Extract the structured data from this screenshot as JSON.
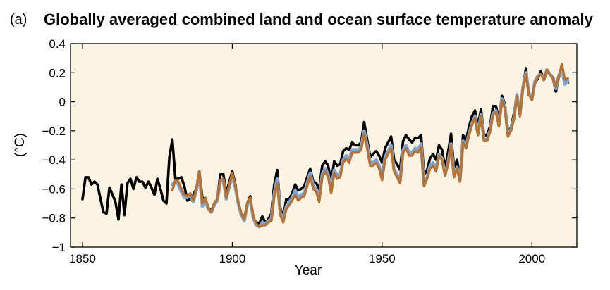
{
  "panel_label": "(a)",
  "chart_data": {
    "type": "line",
    "title": "Globally averaged combined land and ocean surface temperature anomaly",
    "xlabel": "Year",
    "ylabel": "(°C)",
    "xlim": [
      1846,
      2015
    ],
    "ylim": [
      -1,
      0.4
    ],
    "xticks": [
      1850,
      1900,
      1950,
      2000
    ],
    "yticks": [
      0.4,
      0.2,
      0,
      -0.2,
      -0.4,
      -0.6,
      -0.8,
      -1
    ],
    "ytick_labels": [
      "0.4",
      "0.2",
      "0",
      "−0.2",
      "−0.4",
      "−0.6",
      "−0.8",
      "−1"
    ],
    "grid": false,
    "background_color": "#fcf3e2",
    "series": [
      {
        "color": "#000000",
        "x": [
          1850,
          1851,
          1852,
          1853,
          1854,
          1855,
          1856,
          1857,
          1858,
          1859,
          1860,
          1861,
          1862,
          1863,
          1864,
          1865,
          1866,
          1867,
          1868,
          1869,
          1870,
          1871,
          1872,
          1873,
          1874,
          1875,
          1876,
          1877,
          1878,
          1879,
          1880,
          1881,
          1882,
          1883,
          1884,
          1885,
          1886,
          1887,
          1888,
          1889,
          1890,
          1891,
          1892,
          1893,
          1894,
          1895,
          1896,
          1897,
          1898,
          1899,
          1900,
          1901,
          1902,
          1903,
          1904,
          1905,
          1906,
          1907,
          1908,
          1909,
          1910,
          1911,
          1912,
          1913,
          1914,
          1915,
          1916,
          1917,
          1918,
          1919,
          1920,
          1921,
          1922,
          1923,
          1924,
          1925,
          1926,
          1927,
          1928,
          1929,
          1930,
          1931,
          1932,
          1933,
          1934,
          1935,
          1936,
          1937,
          1938,
          1939,
          1940,
          1941,
          1942,
          1943,
          1944,
          1945,
          1946,
          1947,
          1948,
          1949,
          1950,
          1951,
          1952,
          1953,
          1954,
          1955,
          1956,
          1957,
          1958,
          1959,
          1960,
          1961,
          1962,
          1963,
          1964,
          1965,
          1966,
          1967,
          1968,
          1969,
          1970,
          1971,
          1972,
          1973,
          1974,
          1975,
          1976,
          1977,
          1978,
          1979,
          1980,
          1981,
          1982,
          1983,
          1984,
          1985,
          1986,
          1987,
          1988,
          1989,
          1990,
          1991,
          1992,
          1993,
          1994,
          1995,
          1996,
          1997,
          1998,
          1999,
          2000,
          2001,
          2002,
          2003,
          2004,
          2005,
          2006,
          2007,
          2008,
          2009,
          2010,
          2011,
          2012
        ],
        "values": [
          -0.67,
          -0.52,
          -0.52,
          -0.57,
          -0.55,
          -0.57,
          -0.67,
          -0.76,
          -0.77,
          -0.59,
          -0.64,
          -0.69,
          -0.81,
          -0.57,
          -0.78,
          -0.56,
          -0.53,
          -0.6,
          -0.52,
          -0.55,
          -0.55,
          -0.59,
          -0.55,
          -0.59,
          -0.64,
          -0.53,
          -0.6,
          -0.68,
          -0.7,
          -0.38,
          -0.26,
          -0.53,
          -0.53,
          -0.52,
          -0.58,
          -0.68,
          -0.67,
          -0.64,
          -0.6,
          -0.48,
          -0.66,
          -0.67,
          -0.73,
          -0.75,
          -0.7,
          -0.67,
          -0.5,
          -0.5,
          -0.63,
          -0.55,
          -0.48,
          -0.57,
          -0.7,
          -0.77,
          -0.8,
          -0.7,
          -0.65,
          -0.8,
          -0.83,
          -0.84,
          -0.79,
          -0.83,
          -0.81,
          -0.77,
          -0.57,
          -0.47,
          -0.73,
          -0.8,
          -0.67,
          -0.67,
          -0.63,
          -0.57,
          -0.61,
          -0.6,
          -0.58,
          -0.52,
          -0.46,
          -0.55,
          -0.56,
          -0.6,
          -0.44,
          -0.41,
          -0.44,
          -0.55,
          -0.41,
          -0.44,
          -0.43,
          -0.34,
          -0.32,
          -0.33,
          -0.28,
          -0.3,
          -0.3,
          -0.28,
          -0.14,
          -0.26,
          -0.38,
          -0.36,
          -0.34,
          -0.37,
          -0.42,
          -0.32,
          -0.28,
          -0.24,
          -0.4,
          -0.43,
          -0.47,
          -0.27,
          -0.23,
          -0.26,
          -0.28,
          -0.25,
          -0.25,
          -0.23,
          -0.5,
          -0.47,
          -0.39,
          -0.36,
          -0.4,
          -0.3,
          -0.33,
          -0.46,
          -0.35,
          -0.22,
          -0.46,
          -0.4,
          -0.53,
          -0.23,
          -0.27,
          -0.17,
          -0.1,
          -0.06,
          -0.17,
          -0.05,
          -0.23,
          -0.23,
          -0.17,
          -0.03,
          -0.03,
          -0.12,
          0.04,
          -0.02,
          -0.2,
          -0.18,
          -0.08,
          0.05,
          -0.07,
          0.1,
          0.23,
          0.05,
          0.02,
          0.13,
          0.16,
          0.21,
          0.15,
          0.21,
          0.19,
          0.16,
          0.07,
          0.17,
          0.22,
          0.14,
          0.13
        ]
      },
      {
        "color": "#7ba7d9",
        "x": [
          1880,
          1881,
          1882,
          1883,
          1884,
          1885,
          1886,
          1887,
          1888,
          1889,
          1890,
          1891,
          1892,
          1893,
          1894,
          1895,
          1896,
          1897,
          1898,
          1899,
          1900,
          1901,
          1902,
          1903,
          1904,
          1905,
          1906,
          1907,
          1908,
          1909,
          1910,
          1911,
          1912,
          1913,
          1914,
          1915,
          1916,
          1917,
          1918,
          1919,
          1920,
          1921,
          1922,
          1923,
          1924,
          1925,
          1926,
          1927,
          1928,
          1929,
          1930,
          1931,
          1932,
          1933,
          1934,
          1935,
          1936,
          1937,
          1938,
          1939,
          1940,
          1941,
          1942,
          1943,
          1944,
          1945,
          1946,
          1947,
          1948,
          1949,
          1950,
          1951,
          1952,
          1953,
          1954,
          1955,
          1956,
          1957,
          1958,
          1959,
          1960,
          1961,
          1962,
          1963,
          1964,
          1965,
          1966,
          1967,
          1968,
          1969,
          1970,
          1971,
          1972,
          1973,
          1974,
          1975,
          1976,
          1977,
          1978,
          1979,
          1980,
          1981,
          1982,
          1983,
          1984,
          1985,
          1986,
          1987,
          1988,
          1989,
          1990,
          1991,
          1992,
          1993,
          1994,
          1995,
          1996,
          1997,
          1998,
          1999,
          2000,
          2001,
          2002,
          2003,
          2004,
          2005,
          2006,
          2007,
          2008,
          2009,
          2010,
          2011,
          2012
        ],
        "values": [
          -0.57,
          -0.55,
          -0.57,
          -0.62,
          -0.66,
          -0.66,
          -0.64,
          -0.69,
          -0.61,
          -0.5,
          -0.72,
          -0.68,
          -0.74,
          -0.76,
          -0.71,
          -0.68,
          -0.55,
          -0.54,
          -0.67,
          -0.58,
          -0.51,
          -0.59,
          -0.7,
          -0.78,
          -0.82,
          -0.71,
          -0.67,
          -0.8,
          -0.85,
          -0.86,
          -0.83,
          -0.84,
          -0.82,
          -0.81,
          -0.63,
          -0.53,
          -0.76,
          -0.82,
          -0.72,
          -0.69,
          -0.66,
          -0.61,
          -0.66,
          -0.64,
          -0.63,
          -0.56,
          -0.49,
          -0.58,
          -0.6,
          -0.67,
          -0.5,
          -0.46,
          -0.5,
          -0.61,
          -0.47,
          -0.51,
          -0.5,
          -0.4,
          -0.37,
          -0.4,
          -0.33,
          -0.33,
          -0.33,
          -0.31,
          -0.2,
          -0.3,
          -0.42,
          -0.42,
          -0.4,
          -0.44,
          -0.52,
          -0.38,
          -0.34,
          -0.3,
          -0.47,
          -0.5,
          -0.55,
          -0.33,
          -0.3,
          -0.35,
          -0.35,
          -0.32,
          -0.33,
          -0.29,
          -0.57,
          -0.52,
          -0.44,
          -0.42,
          -0.46,
          -0.36,
          -0.39,
          -0.5,
          -0.42,
          -0.29,
          -0.51,
          -0.45,
          -0.54,
          -0.27,
          -0.31,
          -0.22,
          -0.15,
          -0.1,
          -0.22,
          -0.09,
          -0.26,
          -0.26,
          -0.2,
          -0.08,
          -0.06,
          -0.16,
          0.02,
          -0.04,
          -0.23,
          -0.19,
          -0.11,
          0.05,
          -0.09,
          0.1,
          0.2,
          0.06,
          0.02,
          0.14,
          0.18,
          0.19,
          0.16,
          0.22,
          0.19,
          0.17,
          0.09,
          0.18,
          0.23,
          0.12,
          0.14
        ]
      },
      {
        "color": "#b87333",
        "x": [
          1880,
          1881,
          1882,
          1883,
          1884,
          1885,
          1886,
          1887,
          1888,
          1889,
          1890,
          1891,
          1892,
          1893,
          1894,
          1895,
          1896,
          1897,
          1898,
          1899,
          1900,
          1901,
          1902,
          1903,
          1904,
          1905,
          1906,
          1907,
          1908,
          1909,
          1910,
          1911,
          1912,
          1913,
          1914,
          1915,
          1916,
          1917,
          1918,
          1919,
          1920,
          1921,
          1922,
          1923,
          1924,
          1925,
          1926,
          1927,
          1928,
          1929,
          1930,
          1931,
          1932,
          1933,
          1934,
          1935,
          1936,
          1937,
          1938,
          1939,
          1940,
          1941,
          1942,
          1943,
          1944,
          1945,
          1946,
          1947,
          1948,
          1949,
          1950,
          1951,
          1952,
          1953,
          1954,
          1955,
          1956,
          1957,
          1958,
          1959,
          1960,
          1961,
          1962,
          1963,
          1964,
          1965,
          1966,
          1967,
          1968,
          1969,
          1970,
          1971,
          1972,
          1973,
          1974,
          1975,
          1976,
          1977,
          1978,
          1979,
          1980,
          1981,
          1982,
          1983,
          1984,
          1985,
          1986,
          1987,
          1988,
          1989,
          1990,
          1991,
          1992,
          1993,
          1994,
          1995,
          1996,
          1997,
          1998,
          1999,
          2000,
          2001,
          2002,
          2003,
          2004,
          2005,
          2006,
          2007,
          2008,
          2009,
          2010,
          2011,
          2012
        ],
        "values": [
          -0.61,
          -0.54,
          -0.55,
          -0.6,
          -0.64,
          -0.65,
          -0.63,
          -0.68,
          -0.6,
          -0.48,
          -0.7,
          -0.66,
          -0.73,
          -0.76,
          -0.7,
          -0.67,
          -0.54,
          -0.53,
          -0.66,
          -0.57,
          -0.49,
          -0.58,
          -0.69,
          -0.77,
          -0.81,
          -0.7,
          -0.66,
          -0.79,
          -0.84,
          -0.86,
          -0.85,
          -0.85,
          -0.83,
          -0.82,
          -0.65,
          -0.56,
          -0.78,
          -0.83,
          -0.74,
          -0.71,
          -0.68,
          -0.64,
          -0.68,
          -0.66,
          -0.65,
          -0.58,
          -0.51,
          -0.6,
          -0.62,
          -0.69,
          -0.52,
          -0.48,
          -0.52,
          -0.63,
          -0.49,
          -0.53,
          -0.52,
          -0.42,
          -0.39,
          -0.42,
          -0.35,
          -0.35,
          -0.35,
          -0.33,
          -0.22,
          -0.32,
          -0.44,
          -0.44,
          -0.42,
          -0.46,
          -0.54,
          -0.4,
          -0.36,
          -0.32,
          -0.48,
          -0.52,
          -0.56,
          -0.35,
          -0.32,
          -0.37,
          -0.37,
          -0.34,
          -0.35,
          -0.31,
          -0.58,
          -0.53,
          -0.46,
          -0.44,
          -0.48,
          -0.37,
          -0.4,
          -0.51,
          -0.43,
          -0.3,
          -0.52,
          -0.46,
          -0.55,
          -0.28,
          -0.32,
          -0.23,
          -0.16,
          -0.11,
          -0.23,
          -0.1,
          -0.27,
          -0.27,
          -0.21,
          -0.09,
          -0.07,
          -0.17,
          0.01,
          -0.05,
          -0.24,
          -0.2,
          -0.12,
          0.04,
          -0.1,
          0.09,
          0.19,
          0.05,
          0.01,
          0.13,
          0.17,
          0.19,
          0.15,
          0.22,
          0.19,
          0.16,
          0.1,
          0.18,
          0.26,
          0.15,
          0.16
        ]
      }
    ]
  }
}
